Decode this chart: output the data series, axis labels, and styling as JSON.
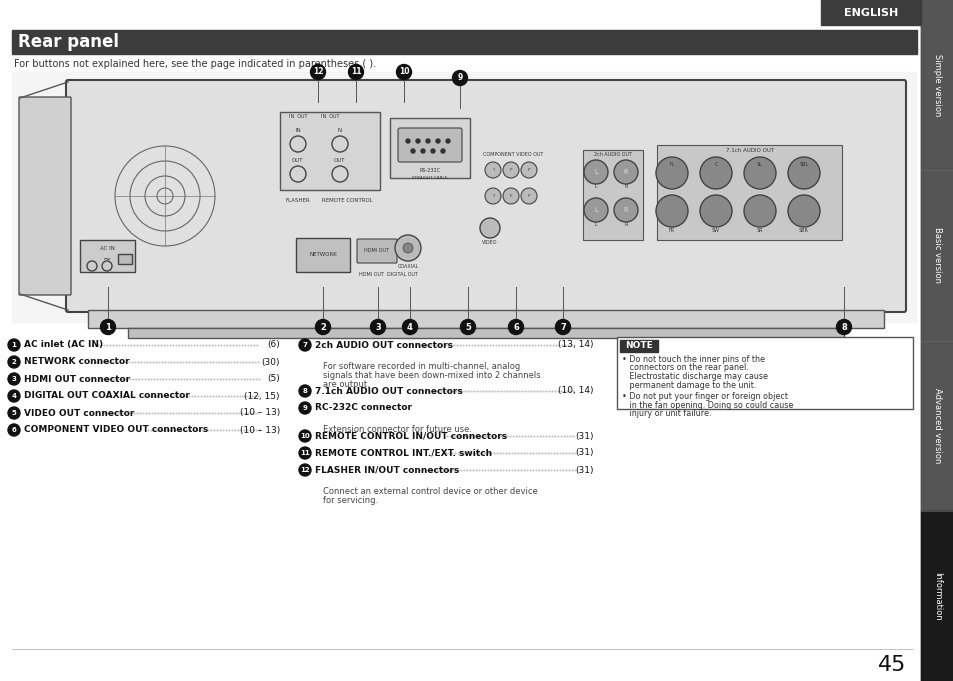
{
  "title": "Rear panel",
  "subtitle": "For buttons not explained here, see the page indicated in parentheses ( ).",
  "page_number": "45",
  "english_tab": "ENGLISH",
  "side_tabs": [
    "Simple version",
    "Basic version",
    "Advanced version",
    "Information"
  ],
  "bg_color": "#ffffff",
  "title_bg": "#3c3c3c",
  "title_color": "#ffffff",
  "tab_bg": "#1a1a1a",
  "tab_color": "#ffffff",
  "english_bg": "#3c3c3c",
  "english_color": "#ffffff",
  "left_items": [
    [
      "1",
      "AC inlet (AC IN)",
      "(6)"
    ],
    [
      "2",
      "NETWORK connector",
      "(30)"
    ],
    [
      "3",
      "HDMI OUT connector",
      "(5)"
    ],
    [
      "4",
      "DIGITAL OUT COAXIAL connector",
      "(12, 15)"
    ],
    [
      "5",
      "VIDEO OUT connector",
      "(10 – 13)"
    ],
    [
      "6",
      "COMPONENT VIDEO OUT connectors",
      "(10 – 13)"
    ]
  ],
  "right_items": [
    [
      "7",
      "2ch AUDIO OUT connectors",
      "(13, 14)",
      "For software recorded in multi-channel, analog signals that have been down-mixed into 2 channels are output."
    ],
    [
      "8",
      "7.1ch AUDIO OUT connectors",
      "(10, 14)",
      ""
    ],
    [
      "9",
      "RC-232C connector",
      "",
      "Extension connector for future use."
    ],
    [
      "10",
      "REMOTE CONTROL IN/OUT connectors",
      "(31)",
      ""
    ],
    [
      "11",
      "REMOTE CONTROL INT./EXT. switch",
      "(31)",
      ""
    ],
    [
      "12",
      "FLASHER IN/OUT connectors",
      "(31)",
      "Connect an external control device or other device for servicing."
    ]
  ],
  "note_title": "NOTE",
  "note_items": [
    "Do not touch the inner pins of the connectors on the rear panel. Electrostatic discharge may cause permanent damage to the unit.",
    "Do not put your finger or foreign object in the fan opening. Doing so could cause injury or unit failure."
  ]
}
